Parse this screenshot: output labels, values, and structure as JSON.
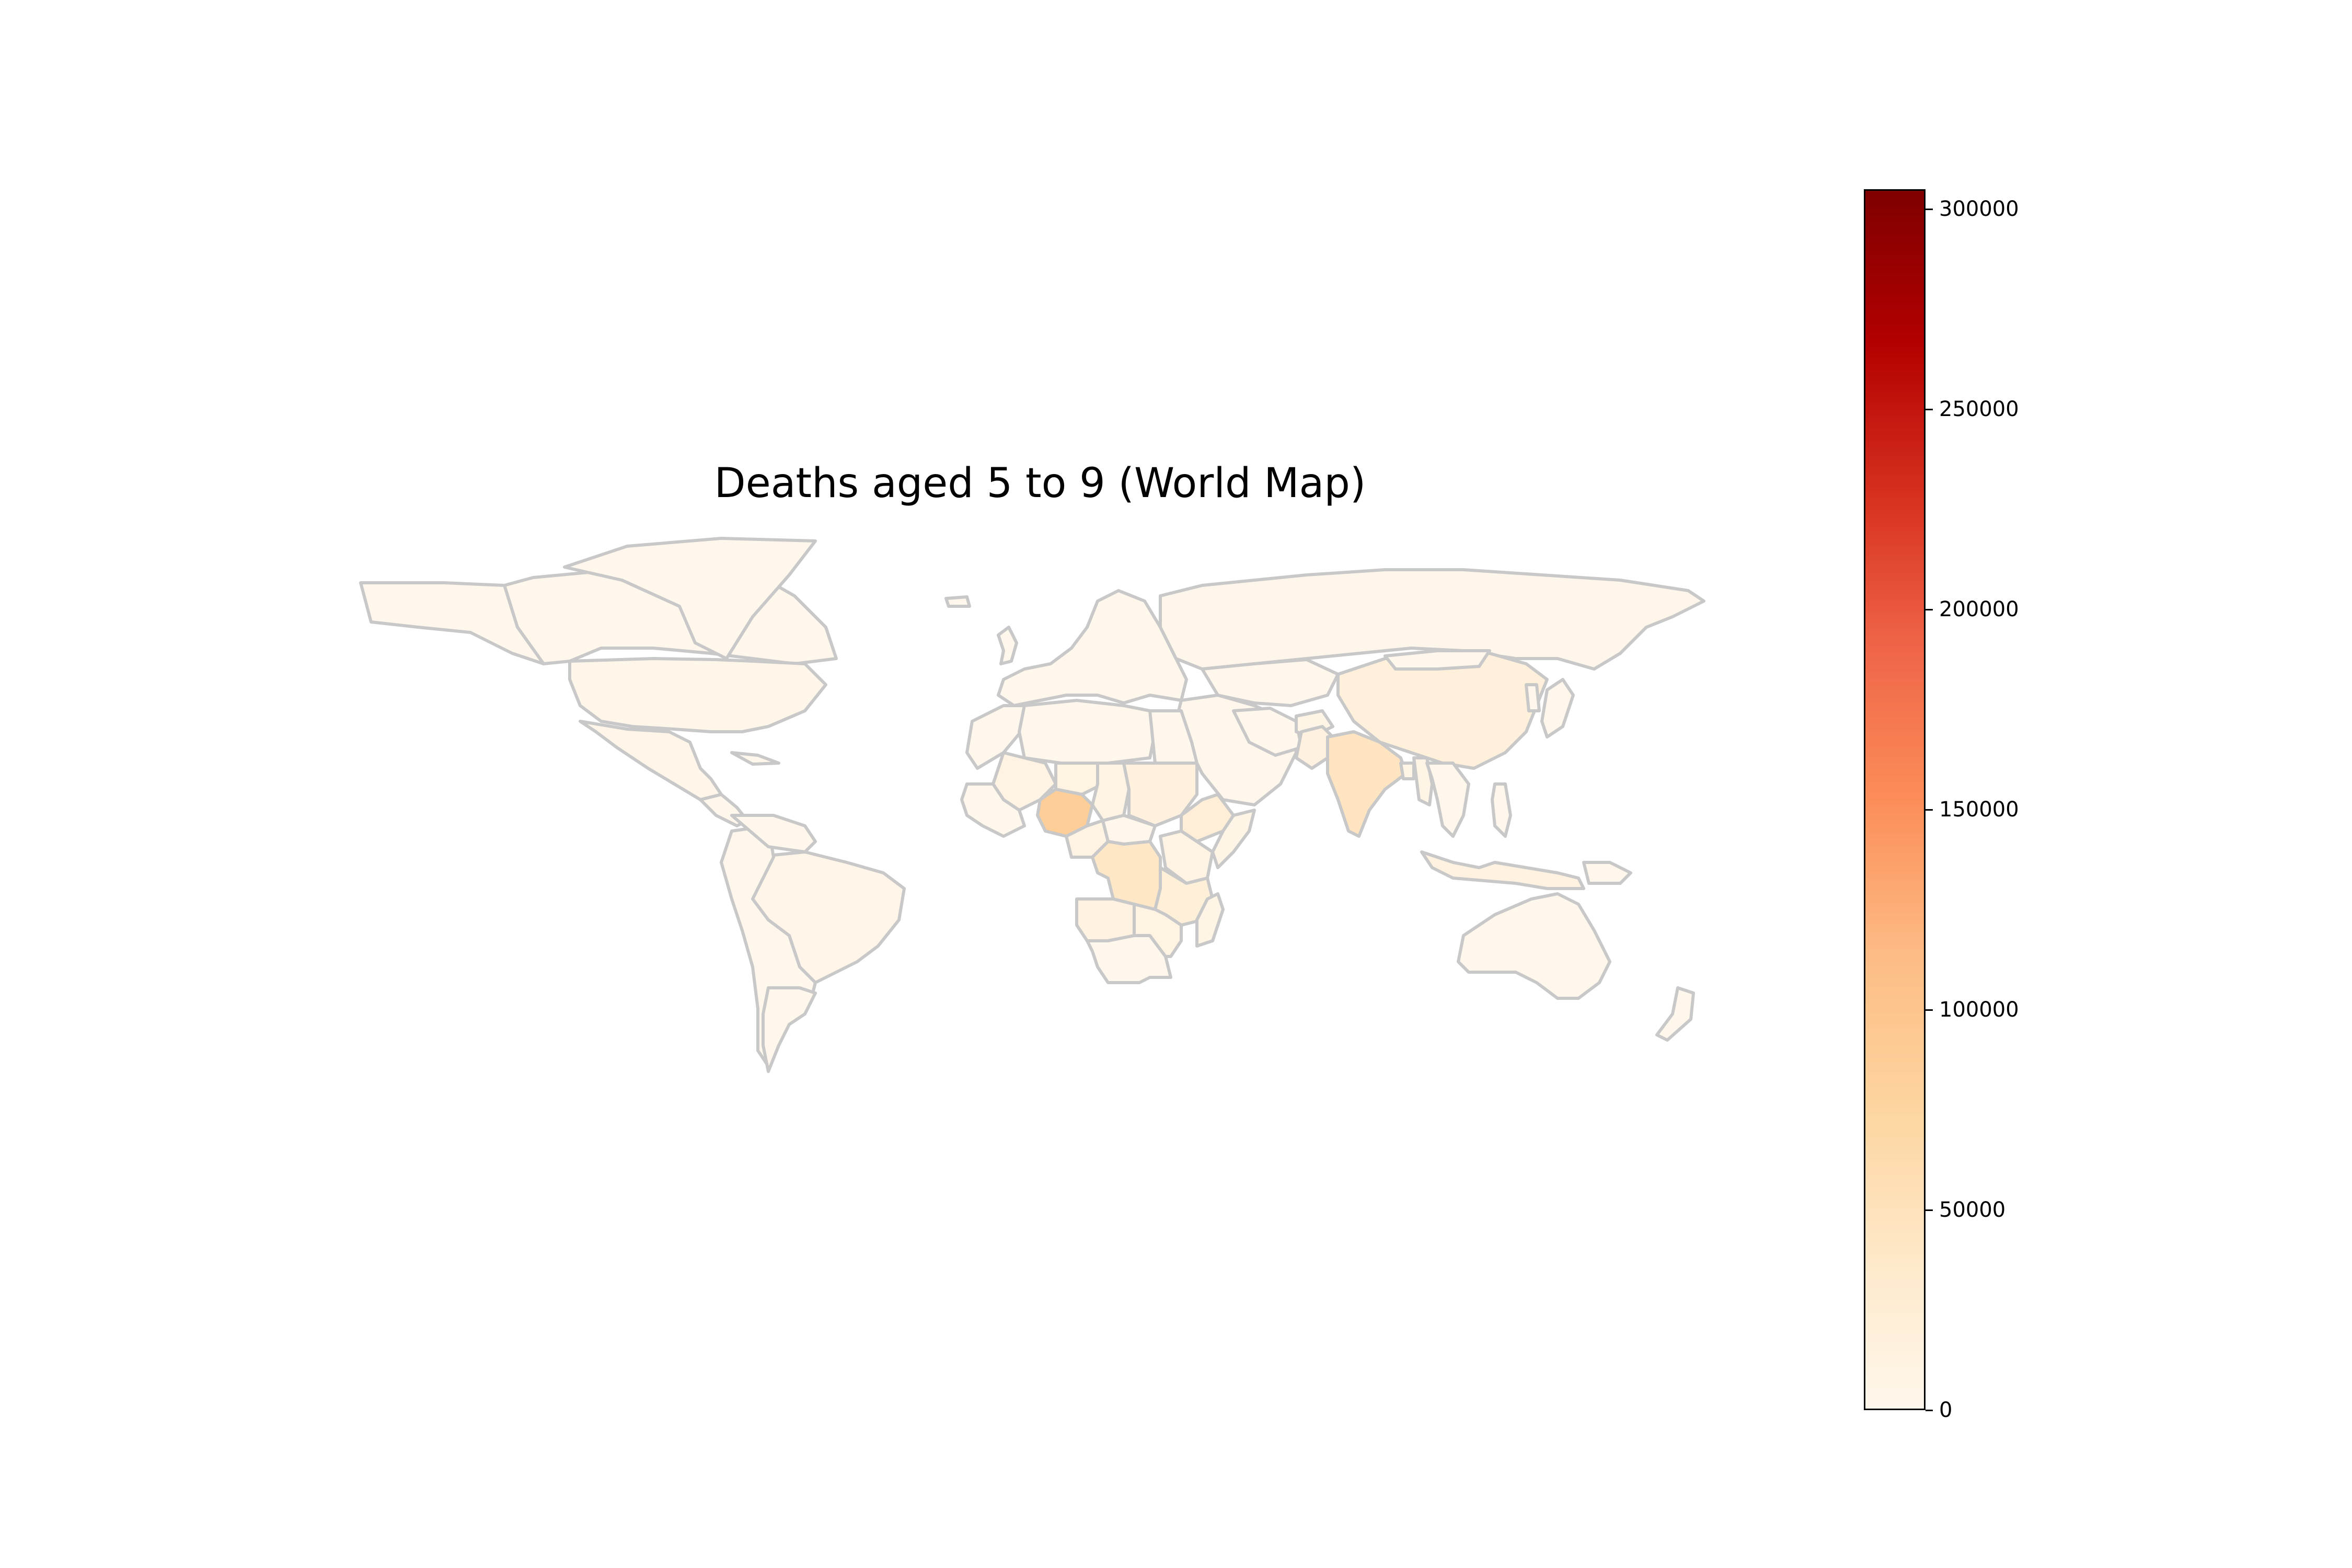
{
  "chart_data": {
    "type": "choropleth",
    "title": "Deaths aged 5 to 9 (World Map)",
    "colormap": "OrRd",
    "color_range": [
      0,
      305000
    ],
    "colorbar_ticks": [
      0,
      50000,
      100000,
      150000,
      200000,
      250000,
      300000
    ],
    "colorbar_tick_labels": [
      "0",
      "50000",
      "100000",
      "150000",
      "200000",
      "250000",
      "300000"
    ],
    "border_color": "#c8c8c8",
    "regions": [
      {
        "name": "Nigeria",
        "value": 85000
      },
      {
        "name": "India",
        "value": 45000
      },
      {
        "name": "DR Congo",
        "value": 40000
      },
      {
        "name": "Ethiopia",
        "value": 22000
      },
      {
        "name": "Tanzania",
        "value": 20000
      },
      {
        "name": "China",
        "value": 18000
      },
      {
        "name": "Sudan",
        "value": 15000
      },
      {
        "name": "Pakistan",
        "value": 14000
      },
      {
        "name": "Indonesia",
        "value": 12000
      },
      {
        "name": "Angola",
        "value": 12000
      },
      {
        "name": "Mozambique",
        "value": 11000
      },
      {
        "name": "Niger",
        "value": 11000
      },
      {
        "name": "Mali",
        "value": 9000
      },
      {
        "name": "Chad",
        "value": 9000
      },
      {
        "name": "Cameroon",
        "value": 9000
      },
      {
        "name": "Kenya",
        "value": 8000
      },
      {
        "name": "Uganda",
        "value": 8000
      },
      {
        "name": "Madagascar",
        "value": 6000
      },
      {
        "name": "Afghanistan",
        "value": 6000
      },
      {
        "name": "Bangladesh",
        "value": 6000
      },
      {
        "name": "Myanmar",
        "value": 5000
      },
      {
        "name": "Somalia",
        "value": 5000
      },
      {
        "name": "Brazil",
        "value": 4000
      },
      {
        "name": "Mexico",
        "value": 3000
      },
      {
        "name": "United States",
        "value": 2500
      },
      {
        "name": "Russia",
        "value": 1500
      },
      {
        "name": "Canada",
        "value": 300
      },
      {
        "name": "Australia",
        "value": 250
      }
    ]
  }
}
